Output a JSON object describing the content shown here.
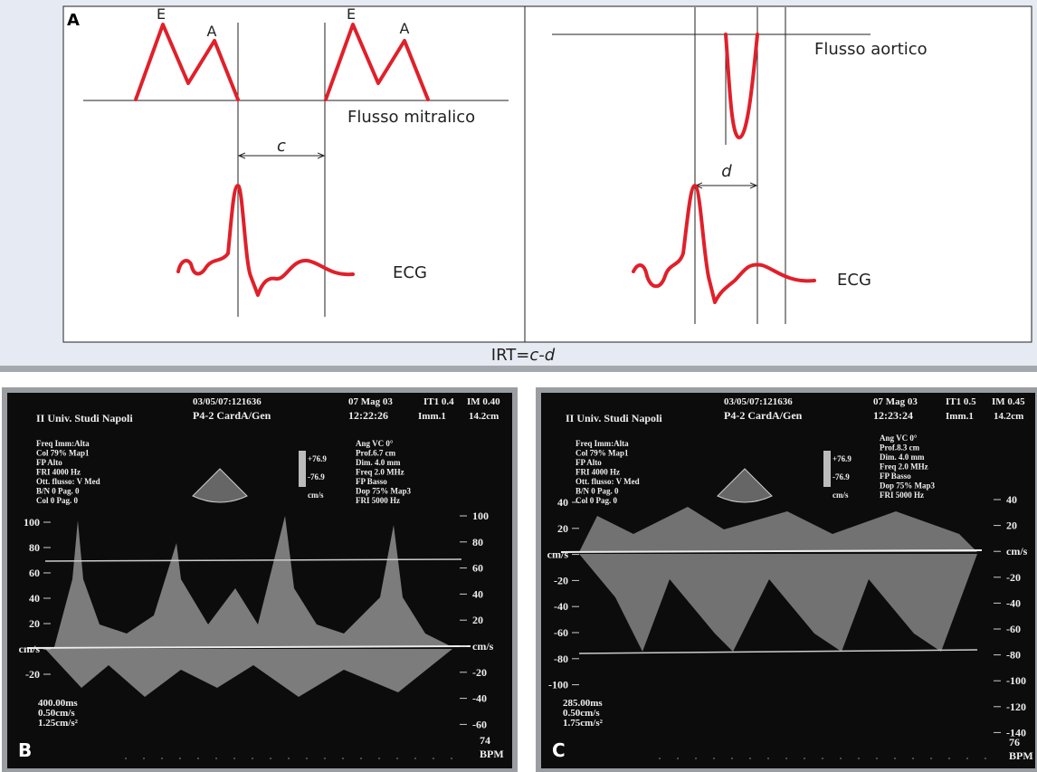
{
  "panel_a": {
    "label": "A",
    "left": {
      "wave_labels": [
        "E",
        "A",
        "E",
        "A"
      ],
      "interval": "c",
      "flow": "Flusso mitralico",
      "ecg": "ECG"
    },
    "right": {
      "interval": "d",
      "flow": "Flusso aortico",
      "ecg": "ECG"
    },
    "caption_prefix": "IRT=",
    "caption_formula": "c-d"
  },
  "panel_b": {
    "label": "B",
    "header": {
      "institution": "II Univ. Studi Napoli",
      "id": "03/05/07:121636",
      "probe": "P4-2 CardA/Gen",
      "date": "07 Mag 03",
      "time": "12:22:26",
      "it": "IT1 0.4",
      "im": "IM 0.40",
      "image": "Imm.1",
      "depth": "14.2cm"
    },
    "settings_left": [
      "Freq Imm:Alta",
      "Col 79%  Map1",
      "FP Alto",
      "FRI 4000  Hz",
      "Ott. flusso: V Med",
      "B/N 0    Pag. 0",
      "Col 0    Pag. 0"
    ],
    "settings_right": [
      "Ang VC 0°",
      "Prof.6.7  cm",
      "Dim. 4.0  mm",
      "Freq 2.0  MHz",
      "FP Basso",
      "Dop 75%  Map3",
      "FRI 5000  Hz"
    ],
    "scale": [
      "+76.9",
      "-76.9",
      "cm/s"
    ],
    "left_ticks": [
      "100",
      "80",
      "60",
      "40",
      "20",
      "cm/s",
      "-20"
    ],
    "right_ticks": [
      "100",
      "80",
      "60",
      "40",
      "20",
      "cm/s",
      "-20",
      "-40",
      "-60"
    ],
    "sweep": [
      "400.00ms",
      "0.50cm/s",
      "1.25cm/s²"
    ],
    "heart_rate": "74",
    "heart_rate_unit": "BPM"
  },
  "panel_c": {
    "label": "C",
    "header": {
      "institution": "II Univ. Studi Napoli",
      "id": "03/05/07:121636",
      "probe": "P4-2 CardA/Gen",
      "date": "07 Mag 03",
      "time": "12:23:24",
      "it": "IT1 0.5",
      "im": "IM 0.45",
      "image": "Imm.1",
      "depth": "14.2cm"
    },
    "settings_left": [
      "Freq Imm:Alta",
      "Col 79%  Map1",
      "FP Alto",
      "FRI 4000  Hz",
      "Ott. flusso: V Med",
      "B/N 0    Pag. 0",
      "Col 0    Pag. 0"
    ],
    "settings_right": [
      "Ang VC 0°",
      "Prof.8.3  cm",
      "Dim. 4.0  mm",
      "Freq 2.0  MHz",
      "FP Basso",
      "Dop 75%  Map3",
      "FRI 5000  Hz"
    ],
    "scale": [
      "+76.9",
      "-76.9",
      "cm/s"
    ],
    "left_ticks": [
      "40",
      "20",
      "cm/s",
      "-20",
      "-40",
      "-60",
      "-80",
      "-100"
    ],
    "right_ticks": [
      "40",
      "20",
      "cm/s",
      "-20",
      "-40",
      "-60",
      "-80",
      "-100",
      "-120",
      "-140"
    ],
    "sweep": [
      "285.00ms",
      "0.50cm/s",
      "1.75cm/s²"
    ],
    "heart_rate": "76",
    "heart_rate_unit": "BPM"
  }
}
